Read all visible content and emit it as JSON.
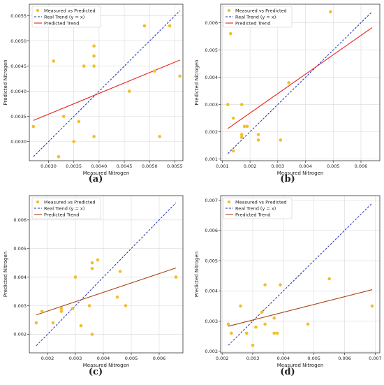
{
  "colors": {
    "scatter": "#f2bf2a",
    "ideal": "#1f2fb0",
    "trend_red": "#e8201c",
    "trend_brown": "#a8420e"
  },
  "chart_data": [
    {
      "type": "scatter",
      "caption": "(a)",
      "xlabel": "Measured Nitrogen",
      "ylabel": "Predicted Nitrogen",
      "xlim": [
        0.00262,
        0.00566
      ],
      "ylim": [
        0.00262,
        0.00573
      ],
      "xticks": [
        0.003,
        0.0035,
        0.004,
        0.0045,
        0.005,
        0.0055
      ],
      "xtick_labels": [
        "0.0030",
        "0.0035",
        "0.0040",
        "0.0045",
        "0.0050",
        "0.0055"
      ],
      "yticks": [
        0.003,
        0.0035,
        0.004,
        0.0045,
        0.005,
        0.0055
      ],
      "ytick_labels": [
        "0.0030",
        "0.0035",
        "0.0040",
        "0.0045",
        "0.0050",
        "0.0055"
      ],
      "legend": [
        "Measured vs Predicted",
        "Real Trend (y = x)",
        "Predicted Trend"
      ],
      "trend_color": "#e8201c",
      "points": [
        [
          0.0027,
          0.0033
        ],
        [
          0.0031,
          0.0046
        ],
        [
          0.0032,
          0.0027
        ],
        [
          0.0033,
          0.0035
        ],
        [
          0.0035,
          0.003
        ],
        [
          0.0036,
          0.0034
        ],
        [
          0.0037,
          0.0045
        ],
        [
          0.0039,
          0.0049
        ],
        [
          0.0039,
          0.0047
        ],
        [
          0.0039,
          0.0045
        ],
        [
          0.0039,
          0.0031
        ],
        [
          0.0046,
          0.004
        ],
        [
          0.0049,
          0.0053
        ],
        [
          0.0051,
          0.0044
        ],
        [
          0.0052,
          0.0031
        ],
        [
          0.0054,
          0.0053
        ],
        [
          0.0056,
          0.0043
        ]
      ],
      "ideal_line": [
        [
          0.0027,
          0.0027
        ],
        [
          0.0056,
          0.0056
        ]
      ],
      "trend_line": [
        [
          0.0027,
          0.00342
        ],
        [
          0.0056,
          0.00462
        ]
      ]
    },
    {
      "type": "scatter",
      "caption": "(b)",
      "xlabel": "Measured Nitrogen",
      "ylabel": "Predicted Nitrogen",
      "xlim": [
        0.00094,
        0.00668
      ],
      "ylim": [
        0.00094,
        0.00668
      ],
      "xticks": [
        0.001,
        0.002,
        0.003,
        0.004,
        0.005,
        0.006
      ],
      "xtick_labels": [
        "0.001",
        "0.002",
        "0.003",
        "0.004",
        "0.005",
        "0.006"
      ],
      "yticks": [
        0.001,
        0.002,
        0.003,
        0.004,
        0.005,
        0.006
      ],
      "ytick_labels": [
        "0.001",
        "0.002",
        "0.003",
        "0.004",
        "0.005",
        "0.006"
      ],
      "legend": [
        "Measured vs Predicted",
        "Real Trend (y = x)",
        "Predicted Trend"
      ],
      "trend_color": "#e8201c",
      "points": [
        [
          0.0012,
          0.003
        ],
        [
          0.0013,
          0.0056
        ],
        [
          0.0014,
          0.0025
        ],
        [
          0.0014,
          0.0013
        ],
        [
          0.0017,
          0.003
        ],
        [
          0.0017,
          0.0019
        ],
        [
          0.0017,
          0.0018
        ],
        [
          0.0018,
          0.0022
        ],
        [
          0.0019,
          0.0022
        ],
        [
          0.0023,
          0.0019
        ],
        [
          0.0023,
          0.0017
        ],
        [
          0.0031,
          0.0017
        ],
        [
          0.0034,
          0.0038
        ],
        [
          0.0049,
          0.0064
        ]
      ],
      "ideal_line": [
        [
          0.0012,
          0.0012
        ],
        [
          0.0064,
          0.0064
        ]
      ],
      "trend_line": [
        [
          0.0012,
          0.00212
        ],
        [
          0.0064,
          0.00582
        ]
      ]
    },
    {
      "type": "scatter",
      "caption": "(c)",
      "xlabel": "Measured Nitrogen",
      "ylabel": "Predicted Nitrogen",
      "xlim": [
        0.00135,
        0.00685
      ],
      "ylim": [
        0.00135,
        0.00685
      ],
      "xticks": [
        0.002,
        0.003,
        0.004,
        0.005,
        0.006
      ],
      "xtick_labels": [
        "0.002",
        "0.003",
        "0.004",
        "0.005",
        "0.006"
      ],
      "yticks": [
        0.002,
        0.003,
        0.004,
        0.005,
        0.006
      ],
      "ytick_labels": [
        "0.002",
        "0.003",
        "0.004",
        "0.005",
        "0.006"
      ],
      "legend": [
        "Measured vs Predicted",
        "Real Trend (y = x)",
        "Predicted Trend"
      ],
      "trend_color": "#a8420e",
      "points": [
        [
          0.0016,
          0.0024
        ],
        [
          0.0018,
          0.0028
        ],
        [
          0.0022,
          0.0024
        ],
        [
          0.0025,
          0.0028
        ],
        [
          0.0025,
          0.0029
        ],
        [
          0.0029,
          0.0029
        ],
        [
          0.003,
          0.004
        ],
        [
          0.0032,
          0.0023
        ],
        [
          0.0035,
          0.003
        ],
        [
          0.0036,
          0.0045
        ],
        [
          0.0036,
          0.0043
        ],
        [
          0.0036,
          0.002
        ],
        [
          0.0038,
          0.0046
        ],
        [
          0.0045,
          0.0033
        ],
        [
          0.0046,
          0.0042
        ],
        [
          0.0048,
          0.003
        ],
        [
          0.0066,
          0.004
        ]
      ],
      "ideal_line": [
        [
          0.0016,
          0.0016
        ],
        [
          0.0066,
          0.0066
        ]
      ],
      "trend_line": [
        [
          0.0016,
          0.00268
        ],
        [
          0.0066,
          0.00432
        ]
      ]
    },
    {
      "type": "scatter",
      "caption": "(d)",
      "xlabel": "Measured Nitrogen",
      "ylabel": "Predicted Nitrogen",
      "xlim": [
        0.00195,
        0.00715
      ],
      "ylim": [
        0.00195,
        0.00715
      ],
      "xticks": [
        0.002,
        0.003,
        0.004,
        0.005,
        0.006,
        0.007
      ],
      "xtick_labels": [
        "0.002",
        "0.003",
        "0.004",
        "0.005",
        "0.006",
        "0.007"
      ],
      "yticks": [
        0.002,
        0.003,
        0.004,
        0.005,
        0.006,
        0.007
      ],
      "ytick_labels": [
        "0.002",
        "0.003",
        "0.004",
        "0.005",
        "0.006",
        "0.007"
      ],
      "legend": [
        "Measured vs Predicted",
        "Real Trend (y = x)",
        "Predicted Trend"
      ],
      "trend_color": "#a8420e",
      "points": [
        [
          0.0022,
          0.0029
        ],
        [
          0.0023,
          0.0026
        ],
        [
          0.0026,
          0.0035
        ],
        [
          0.0028,
          0.0026
        ],
        [
          0.003,
          0.0022
        ],
        [
          0.0031,
          0.0028
        ],
        [
          0.0033,
          0.0033
        ],
        [
          0.0034,
          0.0042
        ],
        [
          0.0034,
          0.0029
        ],
        [
          0.0037,
          0.0031
        ],
        [
          0.0037,
          0.0026
        ],
        [
          0.0038,
          0.0026
        ],
        [
          0.0039,
          0.0042
        ],
        [
          0.0048,
          0.0029
        ],
        [
          0.0055,
          0.0044
        ],
        [
          0.0069,
          0.0035
        ]
      ],
      "ideal_line": [
        [
          0.0022,
          0.0022
        ],
        [
          0.0069,
          0.0069
        ]
      ],
      "trend_line": [
        [
          0.0022,
          0.00283
        ],
        [
          0.0069,
          0.00404
        ]
      ]
    }
  ]
}
